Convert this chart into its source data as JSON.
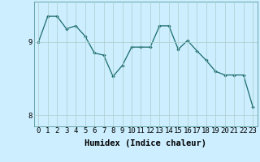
{
  "x": [
    0,
    1,
    2,
    3,
    4,
    5,
    6,
    7,
    8,
    9,
    10,
    11,
    12,
    13,
    14,
    15,
    16,
    17,
    18,
    19,
    20,
    21,
    22,
    23
  ],
  "y": [
    9.0,
    9.35,
    9.35,
    9.18,
    9.22,
    9.08,
    8.85,
    8.82,
    8.53,
    8.68,
    8.93,
    8.93,
    8.93,
    9.22,
    9.22,
    8.9,
    9.02,
    8.88,
    8.75,
    8.6,
    8.55,
    8.55,
    8.55,
    8.12
  ],
  "line_color": "#1a6b6b",
  "marker": "D",
  "marker_size": 2.2,
  "background_color": "#cceeff",
  "grid_color": "#aacccc",
  "xlabel": "Humidex (Indice chaleur)",
  "xlabel_fontsize": 7.5,
  "xlabel_fontweight": "bold",
  "yticks": [
    8,
    9
  ],
  "xticks": [
    0,
    1,
    2,
    3,
    4,
    5,
    6,
    7,
    8,
    9,
    10,
    11,
    12,
    13,
    14,
    15,
    16,
    17,
    18,
    19,
    20,
    21,
    22,
    23
  ],
  "ylim": [
    7.85,
    9.55
  ],
  "xlim": [
    -0.5,
    23.5
  ],
  "tick_fontsize": 6.5
}
